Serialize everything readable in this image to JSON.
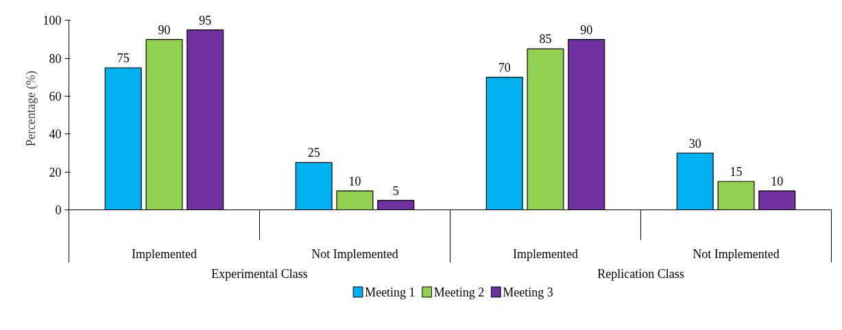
{
  "chart_data": {
    "type": "bar",
    "ylabel": "Percentage (%)",
    "categories": [
      "Implemented",
      "Not Implemented",
      "Implemented",
      "Not Implemented"
    ],
    "annotations": [
      "Experimental Class",
      "Replication Class"
    ],
    "series": [
      {
        "name": "Meeting 1",
        "color": "#00b0f0",
        "values": [
          75,
          25,
          70,
          30
        ]
      },
      {
        "name": "Meeting 2",
        "color": "#92d050",
        "values": [
          90,
          10,
          85,
          15
        ]
      },
      {
        "name": "Meeting 3",
        "color": "#7030a0",
        "values": [
          95,
          5,
          90,
          10
        ]
      }
    ],
    "ylim": [
      0,
      100
    ],
    "yticks": [
      0,
      20,
      40,
      60,
      80,
      100
    ],
    "data_labels": true,
    "grid": false,
    "legend": "bottom"
  }
}
